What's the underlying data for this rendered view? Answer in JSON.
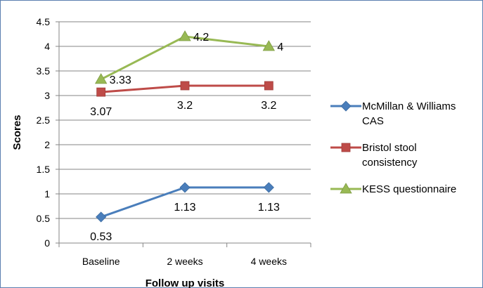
{
  "chart_data": {
    "type": "line",
    "title": "",
    "xlabel": "Follow up visits",
    "ylabel": "Scores",
    "categories": [
      "Baseline",
      "2 weeks",
      "4 weeks"
    ],
    "ylim": [
      0,
      4.5
    ],
    "ytick_step": 0.5,
    "yticks": [
      "0",
      "0.5",
      "1",
      "1.5",
      "2",
      "2.5",
      "3",
      "3.5",
      "4",
      "4.5"
    ],
    "grid": "horizontal major",
    "legend_position": "right",
    "series": [
      {
        "name_lines": [
          "McMillan & Williams",
          "CAS"
        ],
        "values": [
          0.53,
          1.13,
          1.13
        ],
        "labels": [
          "0.53",
          "1.13",
          "1.13"
        ],
        "color": "#4a7ebb",
        "marker": "diamond",
        "label_pos": "below"
      },
      {
        "name_lines": [
          "Bristol stool",
          "consistency"
        ],
        "values": [
          3.07,
          3.2,
          3.2
        ],
        "labels": [
          "3.07",
          "3.2",
          "3.2"
        ],
        "color": "#be4b48",
        "marker": "square",
        "label_pos": "below"
      },
      {
        "name_lines": [
          "KESS questionnaire"
        ],
        "values": [
          3.33,
          4.2,
          4
        ],
        "labels": [
          "3.33",
          "4.2",
          "4"
        ],
        "color": "#98b954",
        "marker": "triangle",
        "label_pos": "right"
      }
    ]
  }
}
